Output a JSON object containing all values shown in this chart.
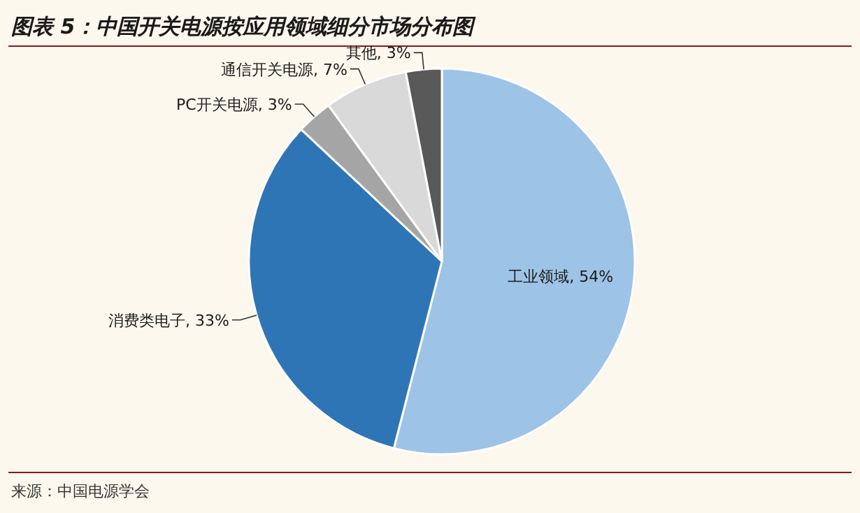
{
  "chart_data": {
    "type": "pie",
    "title": "图表 5：中国开关电源按应用领域细分市场分布图",
    "categories": [
      "工业领域",
      "消费类电子",
      "PC开关电源",
      "通信开关电源",
      "其他"
    ],
    "values": [
      54,
      33,
      3,
      7,
      3
    ],
    "value_labels": [
      "54%",
      "33%",
      "3%",
      "7%",
      "3%"
    ],
    "colors": [
      "#9dc3e6",
      "#2e75b6",
      "#a5a5a5",
      "#d9d9d9",
      "#595959"
    ],
    "annotations": [
      "来源：中国电源学会"
    ]
  }
}
